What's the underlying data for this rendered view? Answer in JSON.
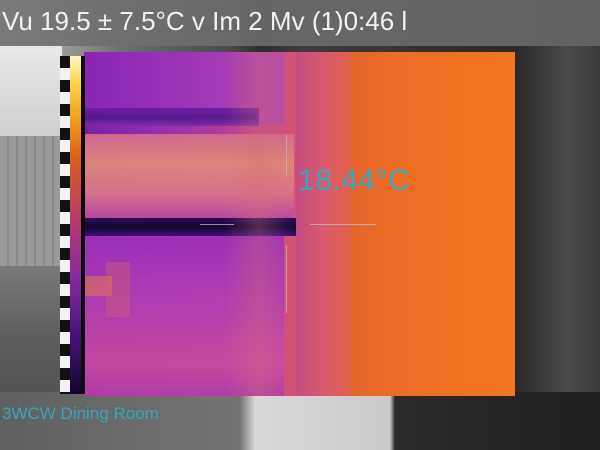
{
  "header": {
    "status_text": "Vu 19.5 ± 7.5°C  v Im 2 Mv (1)0:46 l"
  },
  "measurement": {
    "spot_temperature": "18.44°C"
  },
  "caption": {
    "location": "3WCW Dining Room"
  },
  "icons": {
    "crosshair": "crosshair-icon",
    "scale": "temperature-scale-icon"
  },
  "colors": {
    "accent_text": "#3aa6b8",
    "header_bg": "#6e6e6e",
    "thermal_warm": "#f57623",
    "thermal_cold": "#2a0b55"
  }
}
